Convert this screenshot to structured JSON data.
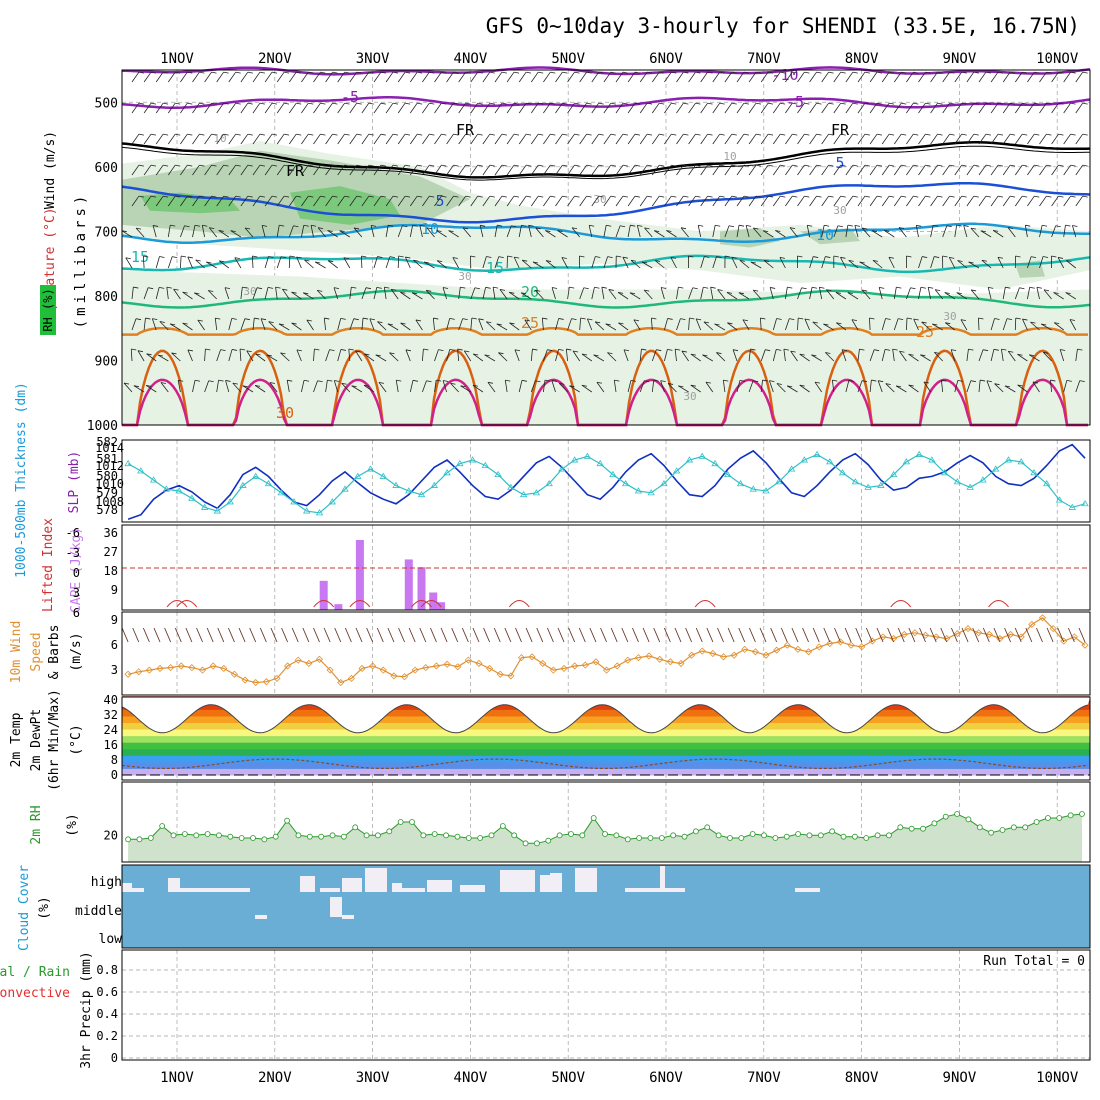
{
  "title": "GFS 0~10day 3-hourly for SHENDI (33.5E, 16.75N)",
  "colors": {
    "frame": "#000000",
    "grid": "#a0a0a0",
    "purple": "#8a1fb0",
    "black": "#000000",
    "blue": "#1a4fd6",
    "lightblue": "#1a9ad8",
    "teal": "#18b8b0",
    "green": "#1fb87a",
    "orange": "#e08020",
    "darkorange": "#d86010",
    "magenta": "#d0208a",
    "rh1": "#e6f2e4",
    "rh2": "#b8d4b4",
    "rh3": "#7cc87c",
    "slp": "#1030c0",
    "thick": "#30c0c8",
    "cape": "#c878f0",
    "li": "#d03030",
    "wind10": "#e09030",
    "rh2m": "#2a9a2a",
    "rh2mfill": "#cfe2cc",
    "cloudbg": "#6aaed6",
    "cloud": "#f2eef6",
    "precip_total": "#2a9a2a",
    "precip_conv": "#e03030"
  },
  "dates": [
    "1NOV",
    "2NOV",
    "3NOV",
    "4NOV",
    "5NOV",
    "6NOV",
    "7NOV",
    "8NOV",
    "9NOV",
    "10NOV"
  ],
  "panels": {
    "upper": {
      "labels": {
        "wind": "Wind (m/s)",
        "temp": "Temperature (°C)",
        "rh": "RH (%)",
        "unit": "(millibars)"
      },
      "yticks": [
        "500",
        "600",
        "700",
        "800",
        "900",
        "1000"
      ],
      "contour_labels": [
        {
          "text": "-10",
          "color": "purple"
        },
        {
          "text": "-5",
          "color": "purple"
        },
        {
          "text": "-5",
          "color": "purple"
        },
        {
          "text": "FR",
          "color": "black"
        },
        {
          "text": "FR",
          "color": "black"
        },
        {
          "text": "FR",
          "color": "black"
        },
        {
          "text": "5",
          "color": "blue"
        },
        {
          "text": "5",
          "color": "blue"
        },
        {
          "text": "10",
          "color": "lightblue"
        },
        {
          "text": "10",
          "color": "lightblue"
        },
        {
          "text": "15",
          "color": "teal"
        },
        {
          "text": "15",
          "color": "teal"
        },
        {
          "text": "20",
          "color": "green"
        },
        {
          "text": "25",
          "color": "orange"
        },
        {
          "text": "25",
          "color": "orange"
        },
        {
          "text": "30",
          "color": "darkorange"
        },
        {
          "text": "10",
          "color": "grid"
        },
        {
          "text": "10",
          "color": "grid"
        },
        {
          "text": "30",
          "color": "grid"
        },
        {
          "text": "30",
          "color": "grid"
        },
        {
          "text": "30",
          "color": "grid"
        },
        {
          "text": "30",
          "color": "grid"
        },
        {
          "text": "30",
          "color": "grid"
        },
        {
          "text": "30",
          "color": "grid"
        }
      ]
    },
    "slp": {
      "label_left": "1000-500mb Thickness (dm)",
      "label_right": "SLP (mb)",
      "yticks_left": [
        "582",
        "581",
        "580",
        "579",
        "578"
      ],
      "yticks_right": [
        "1014",
        "1012",
        "1010",
        "1008"
      ]
    },
    "cape": {
      "label_left": "Lifted Index",
      "label_right": "CAPE (J/kg)",
      "yticks_left": [
        "-6",
        "-3",
        "0",
        "3",
        "6"
      ],
      "yticks_right": [
        "36",
        "27",
        "18",
        "9"
      ]
    },
    "wind10": {
      "label1": "10m Wind",
      "label2": "Speed",
      "label3": "& Barbs",
      "unit": "(m/s)",
      "yticks": [
        "9",
        "6",
        "3"
      ]
    },
    "temp2m": {
      "label1": "2m Temp",
      "label2": "2m DewPt",
      "label3": "(6hr Min/Max)",
      "unit": "(°C)",
      "yticks": [
        "40",
        "32",
        "24",
        "16",
        "8",
        "0"
      ]
    },
    "rh2m": {
      "label": "2m RH",
      "unit": "(%)",
      "yticks": [
        "20"
      ]
    },
    "cloud": {
      "label": "Cloud Cover",
      "unit": "(%)",
      "levels": [
        "high",
        "middle",
        "low"
      ]
    },
    "precip": {
      "label1": "Total / Rain",
      "label2": "Convective",
      "label3": "3hr Precip (mm)",
      "yticks": [
        "0.8",
        "0.6",
        "0.4",
        "0.2",
        "0"
      ],
      "run_total": "Run Total = 0"
    }
  },
  "chart_data": [
    {
      "type": "line",
      "title": "SLP (mb) and 1000-500mb Thickness (dm)",
      "x": "3-hourly steps from 31OCT 12Z to 10NOV 06Z",
      "series": [
        {
          "name": "SLP (mb)",
          "ylim": [
            1006,
            1015
          ],
          "values": [
            1006.3,
            1006.8,
            1008.5,
            1009.5,
            1010,
            1009.3,
            1008.2,
            1007.5,
            1009,
            1011.2,
            1012,
            1011,
            1009.5,
            1008.2,
            1007.8,
            1009,
            1010.5,
            1011.5,
            1010.3,
            1009.2,
            1008.5,
            1008,
            1009,
            1010.5,
            1012,
            1012.8,
            1011.5,
            1010,
            1008.8,
            1008.5,
            1009.5,
            1011,
            1012.5,
            1013.2,
            1012,
            1010.5,
            1009,
            1008.5,
            1009.8,
            1011.5,
            1012.8,
            1013.5,
            1012.2,
            1010.5,
            1009,
            1008.8,
            1010,
            1011.8,
            1013,
            1013.8,
            1012.5,
            1010.8,
            1009.2,
            1008.8,
            1010,
            1011.5,
            1012.8,
            1013.5,
            1012.3,
            1010.6,
            1009.5,
            1009.8,
            1010.8,
            1011,
            1011.5,
            1012.5,
            1013.3,
            1012.5,
            1011,
            1010.2,
            1010,
            1010.8,
            1012.2,
            1013.8,
            1014.5,
            1013
          ]
        },
        {
          "name": "1000-500mb Thickness (dm)",
          "ylim": [
            577.5,
            582
          ],
          "values": [
            580.7,
            580.3,
            579.8,
            579.3,
            579.2,
            578.8,
            578.3,
            578.1,
            578.6,
            579.5,
            580,
            579.6,
            579.1,
            578.6,
            578.1,
            578.0,
            578.6,
            579.3,
            580.0,
            580.4,
            580.0,
            579.5,
            579.2,
            579.0,
            579.5,
            580.2,
            580.7,
            580.9,
            580.6,
            580.1,
            579.4,
            579.0,
            579.1,
            579.6,
            580.4,
            580.9,
            581.1,
            580.7,
            580.1,
            579.6,
            579.2,
            579.1,
            579.6,
            580.3,
            580.9,
            581.1,
            580.7,
            580.1,
            579.6,
            579.3,
            579.2,
            579.7,
            580.4,
            580.9,
            581.2,
            580.8,
            580.2,
            579.7,
            579.4,
            579.5,
            580.1,
            580.8,
            581.2,
            580.9,
            580.2,
            579.7,
            579.4,
            579.8,
            580.4,
            580.9,
            580.8,
            580.2,
            579.6,
            578.7,
            578.3,
            578.5
          ]
        }
      ]
    },
    {
      "type": "bar",
      "title": "CAPE (J/kg) and Lifted Index",
      "ylim": [
        0,
        36
      ],
      "bars": [
        {
          "x": 2.5,
          "value": 15
        },
        {
          "x": 2.65,
          "value": 3
        },
        {
          "x": 2.87,
          "value": 36
        },
        {
          "x": 3.37,
          "value": 26
        },
        {
          "x": 3.5,
          "value": 22
        },
        {
          "x": 3.62,
          "value": 9
        },
        {
          "x": 3.7,
          "value": 4
        }
      ],
      "lifted_index_ylim": [
        6,
        -6
      ]
    },
    {
      "type": "line",
      "title": "10m Wind Speed (m/s)",
      "ylim": [
        0,
        10
      ],
      "values": [
        2.5,
        2.8,
        3.0,
        3.2,
        3.3,
        3.5,
        3.3,
        3.0,
        3.5,
        3.2,
        2.5,
        1.8,
        1.5,
        1.6,
        2.0,
        3.5,
        4.2,
        3.8,
        4.3,
        3.0,
        1.5,
        2.0,
        3.2,
        3.5,
        3.0,
        2.3,
        2.2,
        3.0,
        3.3,
        3.5,
        3.7,
        3.4,
        4.2,
        3.8,
        3.2,
        2.5,
        2.3,
        4.5,
        4.6,
        3.8,
        3.0,
        3.2,
        3.5,
        3.6,
        4.0,
        3.0,
        3.5,
        4.2,
        4.5,
        4.7,
        4.3,
        4.0,
        3.8,
        4.8,
        5.3,
        5.0,
        4.6,
        4.8,
        5.5,
        5.2,
        4.8,
        5.4,
        6.0,
        5.5,
        5.2,
        5.8,
        6.2,
        6.4,
        6.0,
        5.8,
        6.5,
        7.0,
        6.8,
        7.3,
        7.5,
        7.2,
        7.0,
        6.8,
        7.4,
        8.0,
        7.5,
        7.3,
        6.8,
        7.3,
        7.0,
        8.5,
        9.3,
        8.0,
        6.5,
        7.0,
        6.0
      ]
    },
    {
      "type": "area",
      "title": "2m Temp / DewPt (°C)",
      "ylim": [
        0,
        40
      ],
      "daily_max": [
        38,
        36,
        38,
        39,
        38,
        37,
        37,
        38,
        37,
        36
      ],
      "daily_min": [
        22,
        22,
        23,
        23,
        23,
        23,
        23,
        23,
        23,
        22
      ]
    },
    {
      "type": "area",
      "title": "2m RH (%)",
      "ylim": [
        0,
        60
      ],
      "values": [
        17,
        17,
        18,
        27,
        20,
        21,
        20,
        21,
        20,
        19,
        18,
        18,
        17,
        19,
        31,
        20,
        19,
        19,
        20,
        19,
        26,
        20,
        20,
        23,
        30,
        30,
        20,
        21,
        20,
        19,
        18,
        18,
        20,
        27,
        20,
        14,
        14,
        16,
        20,
        21,
        20,
        33,
        21,
        20,
        17,
        18,
        18,
        18,
        20,
        19,
        23,
        26,
        20,
        18,
        18,
        21,
        20,
        18,
        19,
        21,
        20,
        20,
        23,
        19,
        19,
        18,
        20,
        20,
        26,
        25,
        25,
        29,
        34,
        36,
        32,
        26,
        22,
        24,
        26,
        26,
        30,
        33,
        33,
        35,
        36
      ]
    },
    {
      "type": "bar",
      "title": "Cloud Cover (%)",
      "levels": [
        "high",
        "middle",
        "low"
      ]
    },
    {
      "type": "bar",
      "title": "3hr Precip (mm)",
      "ylim": [
        0,
        0.9
      ],
      "values": []
    }
  ]
}
